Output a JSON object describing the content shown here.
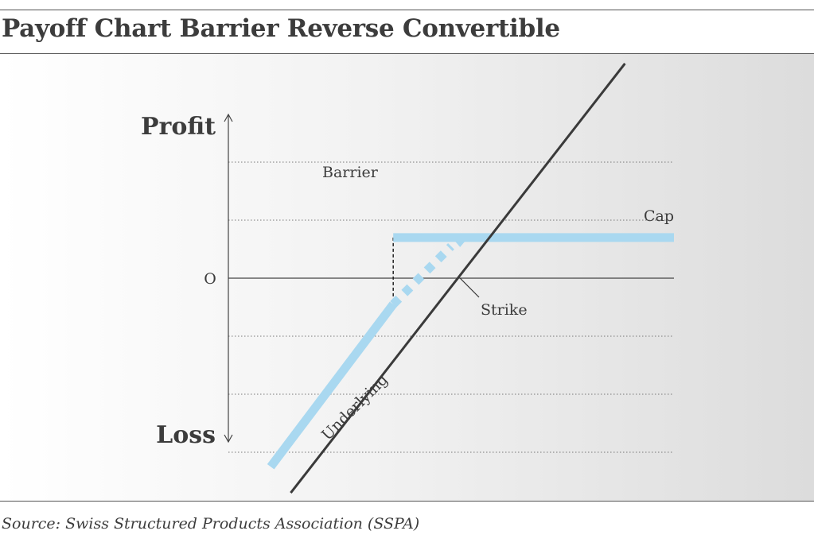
{
  "title": "Payoff Chart Barrier Reverse Convertible",
  "source": "Source: Swiss Structured Products Association (SSPA)",
  "colors": {
    "product": "#a9d8f0",
    "underlying": "#3a3a3a",
    "text": "#3c3c3c",
    "grid": "#777777"
  },
  "chart_data": {
    "type": "line",
    "title": "Payoff Chart Barrier Reverse Convertible",
    "ylabel_top": "Profit",
    "ylabel_bottom": "Loss",
    "zero_label": "O",
    "xlim": [
      0,
      100
    ],
    "ylim": [
      -10,
      10
    ],
    "gridlines_y": [
      -6,
      -4,
      -2,
      2,
      4
    ],
    "annotations": {
      "barrier": "Barrier",
      "cap": "Cap",
      "strike": "Strike",
      "underlying": "Underlying"
    },
    "barrier_x": 37,
    "strike_x": 52,
    "cap_y": 1.4,
    "series": [
      {
        "name": "Underlying",
        "style": "solid",
        "x": [
          14,
          89
        ],
        "y": [
          -7.4,
          7.4
        ]
      },
      {
        "name": "Barrier Reverse Convertible (below barrier)",
        "style": "solid",
        "x": [
          9.5,
          37
        ],
        "y": [
          -6.5,
          -0.9
        ]
      },
      {
        "name": "Barrier Reverse Convertible (not triggered)",
        "style": "dotted",
        "x": [
          37,
          50
        ],
        "y": [
          -0.9,
          1.1
        ]
      },
      {
        "name": "Barrier Reverse Convertible (cap)",
        "style": "solid",
        "x": [
          37,
          100
        ],
        "y": [
          1.4,
          1.4
        ]
      }
    ]
  }
}
